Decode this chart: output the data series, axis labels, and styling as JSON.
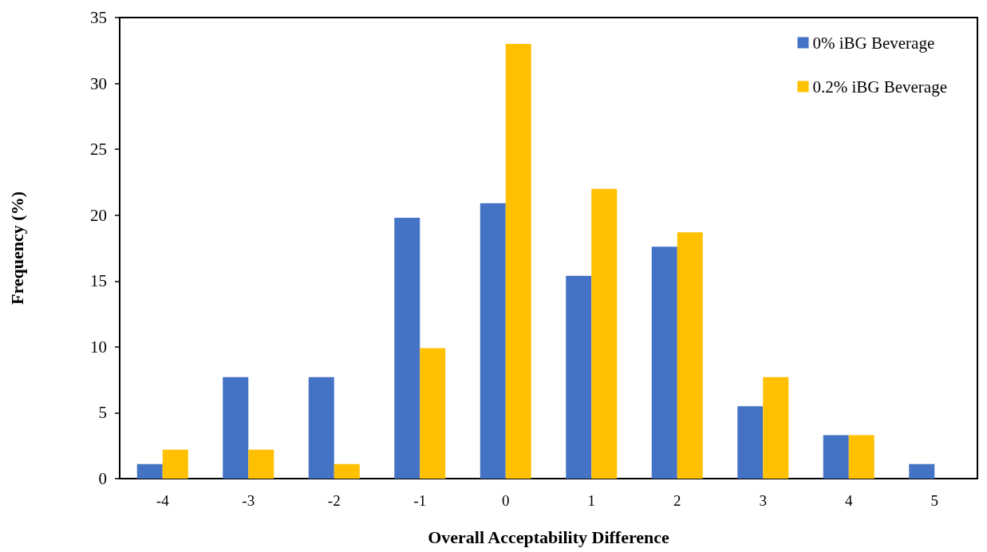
{
  "chart_data": {
    "type": "bar",
    "xlabel": "Overall Acceptability Difference",
    "ylabel": "Frequency (%)",
    "categories": [
      "-4",
      "-3",
      "-2",
      "-1",
      "0",
      "1",
      "2",
      "3",
      "4",
      "5"
    ],
    "series": [
      {
        "name": "0% iBG Beverage",
        "color": "#4472c4",
        "values": [
          1.1,
          7.7,
          7.7,
          19.8,
          20.9,
          15.4,
          17.6,
          5.5,
          3.3,
          1.1
        ]
      },
      {
        "name": "0.2% iBG Beverage",
        "color": "#ffc000",
        "values": [
          2.2,
          2.2,
          1.1,
          9.9,
          33.0,
          22.0,
          18.7,
          7.7,
          3.3,
          0
        ]
      }
    ],
    "ylim": [
      0,
      35
    ],
    "yticks": [
      0,
      5,
      10,
      15,
      20,
      25,
      30,
      35
    ],
    "grid": false,
    "legend": "top right"
  }
}
